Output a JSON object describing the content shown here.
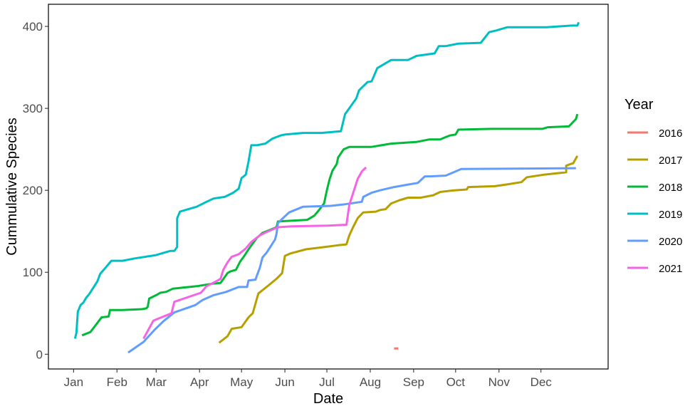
{
  "chart_data": {
    "type": "line",
    "title": "",
    "xlabel": "Date",
    "ylabel": "Cummulative Species",
    "x_ticks": [
      "Jan",
      "Feb",
      "Mar",
      "Apr",
      "May",
      "Jun",
      "Jul",
      "Aug",
      "Sep",
      "Oct",
      "Nov",
      "Dec"
    ],
    "x_tick_days": [
      1,
      32,
      60,
      91,
      121,
      152,
      182,
      213,
      244,
      274,
      305,
      335
    ],
    "xlim": [
      -17,
      383
    ],
    "y_ticks": [
      0,
      100,
      200,
      300,
      400
    ],
    "ylim": [
      -18,
      427
    ],
    "grid": false,
    "legend": {
      "title": "Year",
      "position": "right"
    },
    "series": [
      {
        "name": "2016",
        "color": "#F8766D",
        "points": [
          [
            230,
            7
          ],
          [
            233,
            7
          ]
        ]
      },
      {
        "name": "2017",
        "color": "#B79F00",
        "points": [
          [
            105,
            14
          ],
          [
            111,
            22
          ],
          [
            114,
            31
          ],
          [
            121,
            33
          ],
          [
            126,
            45
          ],
          [
            129,
            50
          ],
          [
            133,
            74
          ],
          [
            141,
            85
          ],
          [
            146,
            92
          ],
          [
            150,
            99
          ],
          [
            152,
            120
          ],
          [
            156,
            123
          ],
          [
            167,
            128
          ],
          [
            181,
            131
          ],
          [
            190,
            133
          ],
          [
            196,
            134
          ],
          [
            198,
            145
          ],
          [
            201,
            156
          ],
          [
            204,
            166
          ],
          [
            208,
            173
          ],
          [
            217,
            174
          ],
          [
            220,
            176
          ],
          [
            224,
            177
          ],
          [
            228,
            184
          ],
          [
            234,
            188
          ],
          [
            240,
            191
          ],
          [
            249,
            191
          ],
          [
            258,
            194
          ],
          [
            263,
            198
          ],
          [
            273,
            200
          ],
          [
            282,
            201
          ],
          [
            283,
            204
          ],
          [
            302,
            205
          ],
          [
            310,
            207
          ],
          [
            321,
            210
          ],
          [
            325,
            216
          ],
          [
            337,
            219
          ],
          [
            353,
            222
          ],
          [
            353,
            230
          ],
          [
            356,
            232
          ],
          [
            358,
            233
          ],
          [
            361,
            242
          ]
        ]
      },
      {
        "name": "2018",
        "color": "#00BA38",
        "points": [
          [
            7,
            23
          ],
          [
            13,
            27
          ],
          [
            21,
            45
          ],
          [
            26,
            46
          ],
          [
            27,
            54
          ],
          [
            36,
            54
          ],
          [
            50,
            55
          ],
          [
            53,
            56
          ],
          [
            54,
            58
          ],
          [
            55,
            68
          ],
          [
            60,
            72
          ],
          [
            63,
            75
          ],
          [
            67,
            76
          ],
          [
            72,
            80
          ],
          [
            89,
            83
          ],
          [
            100,
            86
          ],
          [
            106,
            87
          ],
          [
            111,
            99
          ],
          [
            113,
            101
          ],
          [
            117,
            103
          ],
          [
            120,
            113
          ],
          [
            123,
            120
          ],
          [
            126,
            128
          ],
          [
            132,
            142
          ],
          [
            136,
            148
          ],
          [
            146,
            155
          ],
          [
            147,
            162
          ],
          [
            168,
            164
          ],
          [
            173,
            169
          ],
          [
            176,
            175
          ],
          [
            180,
            184
          ],
          [
            182,
            200
          ],
          [
            184,
            214
          ],
          [
            186,
            224
          ],
          [
            189,
            232
          ],
          [
            190,
            240
          ],
          [
            194,
            250
          ],
          [
            198,
            253
          ],
          [
            214,
            253
          ],
          [
            221,
            255
          ],
          [
            228,
            257
          ],
          [
            246,
            259
          ],
          [
            255,
            262
          ],
          [
            263,
            262
          ],
          [
            267,
            265
          ],
          [
            270,
            267
          ],
          [
            274,
            268
          ],
          [
            276,
            274
          ],
          [
            300,
            275
          ],
          [
            336,
            275
          ],
          [
            340,
            277
          ],
          [
            355,
            278
          ],
          [
            360,
            287
          ],
          [
            361,
            293
          ]
        ]
      },
      {
        "name": "2019",
        "color": "#00BFC4",
        "points": [
          [
            2,
            19
          ],
          [
            3,
            26
          ],
          [
            4,
            52
          ],
          [
            6,
            60
          ],
          [
            8,
            63
          ],
          [
            10,
            69
          ],
          [
            12,
            73
          ],
          [
            18,
            89
          ],
          [
            20,
            98
          ],
          [
            24,
            106
          ],
          [
            28,
            114
          ],
          [
            36,
            114
          ],
          [
            45,
            117
          ],
          [
            60,
            121
          ],
          [
            66,
            124
          ],
          [
            70,
            126
          ],
          [
            73,
            126
          ],
          [
            75,
            131
          ],
          [
            75,
            166
          ],
          [
            77,
            174
          ],
          [
            89,
            180
          ],
          [
            96,
            186
          ],
          [
            101,
            190
          ],
          [
            109,
            192
          ],
          [
            115,
            197
          ],
          [
            119,
            202
          ],
          [
            121,
            215
          ],
          [
            124,
            219
          ],
          [
            126,
            235
          ],
          [
            128,
            255
          ],
          [
            132,
            255
          ],
          [
            138,
            257
          ],
          [
            143,
            263
          ],
          [
            149,
            267
          ],
          [
            152,
            268
          ],
          [
            165,
            270
          ],
          [
            178,
            270
          ],
          [
            192,
            272
          ],
          [
            195,
            293
          ],
          [
            203,
            312
          ],
          [
            205,
            322
          ],
          [
            211,
            332
          ],
          [
            214,
            333
          ],
          [
            218,
            349
          ],
          [
            222,
            353
          ],
          [
            228,
            359
          ],
          [
            240,
            359
          ],
          [
            246,
            364
          ],
          [
            259,
            367
          ],
          [
            262,
            376
          ],
          [
            267,
            376
          ],
          [
            276,
            379
          ],
          [
            292,
            380
          ],
          [
            298,
            393
          ],
          [
            303,
            395
          ],
          [
            311,
            399
          ],
          [
            339,
            399
          ],
          [
            357,
            401
          ],
          [
            361,
            401
          ],
          [
            362,
            405
          ]
        ]
      },
      {
        "name": "2020",
        "color": "#619CFF",
        "points": [
          [
            40,
            2
          ],
          [
            51,
            15
          ],
          [
            59,
            30
          ],
          [
            65,
            40
          ],
          [
            73,
            51
          ],
          [
            88,
            60
          ],
          [
            93,
            66
          ],
          [
            101,
            72
          ],
          [
            110,
            76
          ],
          [
            119,
            82
          ],
          [
            125,
            82
          ],
          [
            126,
            90
          ],
          [
            131,
            91
          ],
          [
            132,
            96
          ],
          [
            134,
            105
          ],
          [
            136,
            118
          ],
          [
            139,
            124
          ],
          [
            142,
            132
          ],
          [
            145,
            140
          ],
          [
            146,
            147
          ],
          [
            147,
            160
          ],
          [
            150,
            165
          ],
          [
            155,
            173
          ],
          [
            165,
            180
          ],
          [
            185,
            181
          ],
          [
            195,
            183
          ],
          [
            207,
            186
          ],
          [
            208,
            192
          ],
          [
            214,
            197
          ],
          [
            220,
            200
          ],
          [
            230,
            204
          ],
          [
            240,
            207
          ],
          [
            247,
            209
          ],
          [
            252,
            217
          ],
          [
            256,
            217
          ],
          [
            267,
            218
          ],
          [
            278,
            226
          ],
          [
            360,
            227
          ]
        ]
      },
      {
        "name": "2021",
        "color": "#F564E3",
        "points": [
          [
            51,
            19
          ],
          [
            58,
            41
          ],
          [
            71,
            50
          ],
          [
            73,
            64
          ],
          [
            92,
            75
          ],
          [
            96,
            83
          ],
          [
            103,
            89
          ],
          [
            106,
            92
          ],
          [
            108,
            103
          ],
          [
            111,
            112
          ],
          [
            114,
            119
          ],
          [
            119,
            122
          ],
          [
            124,
            129
          ],
          [
            128,
            137
          ],
          [
            134,
            145
          ],
          [
            140,
            150
          ],
          [
            147,
            155
          ],
          [
            157,
            156
          ],
          [
            183,
            157
          ],
          [
            196,
            158
          ],
          [
            198,
            182
          ],
          [
            201,
            198
          ],
          [
            204,
            214
          ],
          [
            207,
            223
          ],
          [
            210,
            228
          ]
        ]
      }
    ]
  }
}
